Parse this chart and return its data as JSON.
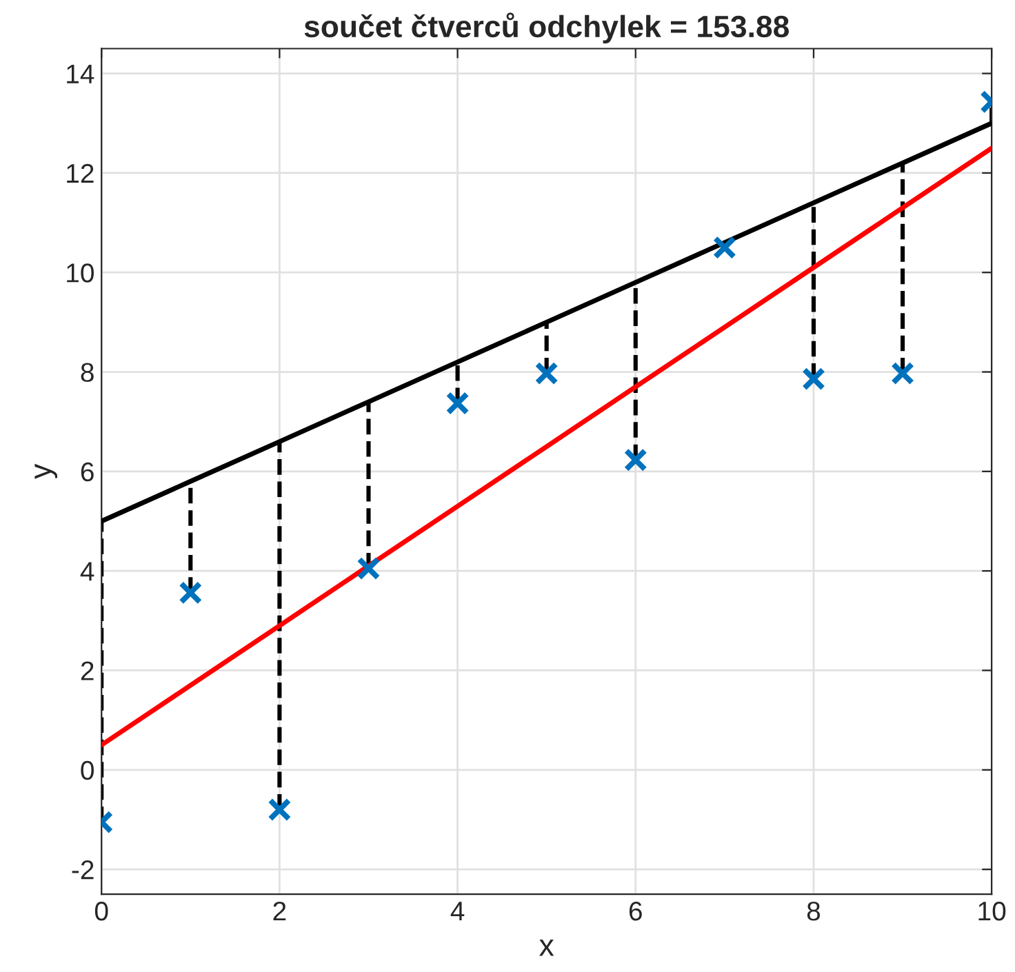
{
  "chart_data": {
    "type": "scatter",
    "title": "součet čtverců odchylek = 153.88",
    "xlabel": "x",
    "ylabel": "y",
    "x": [
      0,
      1,
      2,
      3,
      4,
      5,
      6,
      7,
      8,
      9,
      10
    ],
    "series": [
      {
        "color": "#0072bd",
        "marker": "cross",
        "values": [
          -1.05,
          3.56,
          -0.8,
          4.05,
          7.37,
          7.97,
          6.23,
          10.5,
          7.86,
          7.97,
          13.43
        ],
        "errors": [
          [
            -1.05,
            5.0
          ],
          [
            3.56,
            5.8
          ],
          [
            -0.8,
            6.6
          ],
          [
            4.05,
            7.4
          ],
          [
            7.37,
            8.2
          ],
          [
            7.97,
            9.0
          ],
          [
            6.23,
            9.8
          ],
          [
            10.5,
            10.6
          ],
          [
            7.86,
            11.4
          ],
          [
            7.97,
            12.2
          ],
          [
            13.0,
            13.43
          ]
        ]
      },
      {
        "type": "line",
        "color": "#000000",
        "line_style": "solid",
        "values": [
          5.0,
          5.8,
          6.6,
          7.4,
          8.2,
          9.0,
          9.8,
          10.6,
          11.4,
          12.2,
          13.0
        ]
      },
      {
        "type": "line",
        "color": "#ff0000",
        "line_style": "solid",
        "values": [
          0.5,
          1.7,
          2.9,
          4.1,
          5.3,
          6.5,
          7.7,
          8.9,
          10.1,
          11.3,
          12.5
        ]
      }
    ],
    "xlim": [
      0,
      10
    ],
    "ylim": [
      -2.5,
      14.5
    ],
    "xticks": [
      0,
      2,
      4,
      6,
      8,
      10
    ],
    "yticks": [
      -2,
      0,
      2,
      4,
      6,
      8,
      10,
      12,
      14
    ],
    "grid": true,
    "legend": false
  }
}
